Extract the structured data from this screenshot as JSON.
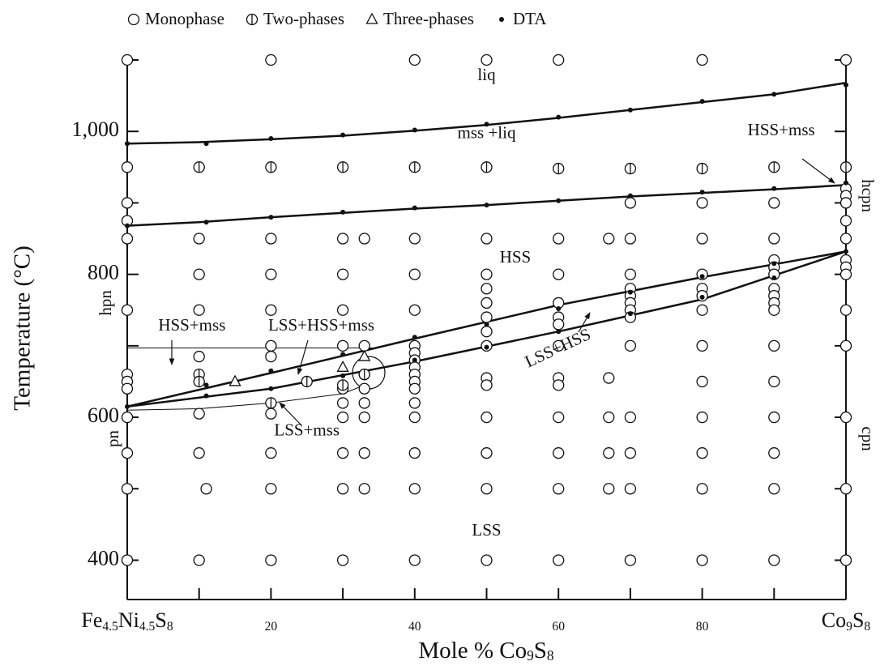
{
  "chart_data": {
    "type": "scatter",
    "x_label": "Mole % Co9S8",
    "y_label": "Temperature (°C)",
    "xlim": [
      0,
      100
    ],
    "ylim": [
      345,
      1100
    ],
    "xticks": [
      {
        "value": 0,
        "label": "Fe4.5Ni4.5S8"
      },
      20,
      40,
      60,
      80,
      {
        "value": 100,
        "label": "Co9S8"
      }
    ],
    "xminorticks": [
      10,
      30,
      50,
      70,
      90
    ],
    "yticks": [
      400,
      600,
      800,
      {
        "value": 1000,
        "label": "1,000"
      }
    ],
    "yminorticks": [
      500,
      700,
      900,
      1100
    ],
    "color": "#111111",
    "series": [
      {
        "name": "Monophase",
        "marker": "circle",
        "x": [
          0,
          0,
          0,
          0,
          0,
          0,
          0,
          0,
          0,
          0,
          0,
          0,
          0,
          10,
          10,
          10,
          10,
          10,
          10,
          11,
          10,
          20,
          20,
          20,
          20,
          20,
          20,
          20,
          20,
          20,
          20,
          30,
          30,
          30,
          30,
          30,
          30,
          30,
          30,
          30,
          30,
          33,
          33,
          33,
          33,
          33,
          33,
          33,
          33,
          40,
          40,
          40,
          40,
          40,
          40,
          40,
          40,
          40,
          40,
          40,
          40,
          40,
          40,
          40,
          40,
          50,
          50,
          50,
          50,
          50,
          50,
          50,
          50,
          50,
          50,
          50,
          50,
          50,
          50,
          60,
          60,
          60,
          60,
          60,
          60,
          60,
          60,
          60,
          60,
          60,
          60,
          60,
          67,
          67,
          67,
          67,
          67,
          70,
          70,
          70,
          70,
          70,
          70,
          70,
          70,
          70,
          70,
          70,
          70,
          70,
          80,
          80,
          80,
          80,
          80,
          80,
          80,
          80,
          80,
          80,
          80,
          80,
          80,
          90,
          90,
          90,
          90,
          90,
          90,
          90,
          90,
          90,
          90,
          90,
          90,
          90,
          90,
          90,
          100,
          100,
          100,
          100,
          100,
          100,
          100,
          100,
          100,
          100,
          100,
          100,
          100,
          100
        ],
        "values": [
          1100,
          950,
          900,
          875,
          850,
          750,
          660,
          650,
          640,
          600,
          550,
          500,
          400,
          850,
          800,
          750,
          685,
          605,
          550,
          500,
          400,
          1100,
          850,
          800,
          750,
          700,
          685,
          605,
          550,
          500,
          400,
          850,
          800,
          750,
          700,
          640,
          620,
          600,
          550,
          500,
          400,
          850,
          700,
          660,
          640,
          620,
          600,
          550,
          500,
          1100,
          850,
          800,
          750,
          700,
          690,
          680,
          670,
          660,
          650,
          640,
          620,
          600,
          550,
          500,
          400,
          1100,
          850,
          800,
          780,
          760,
          740,
          720,
          700,
          655,
          645,
          600,
          550,
          500,
          400,
          1100,
          850,
          800,
          760,
          740,
          730,
          700,
          655,
          645,
          600,
          550,
          500,
          400,
          850,
          655,
          600,
          550,
          500,
          900,
          850,
          800,
          780,
          770,
          760,
          750,
          740,
          700,
          600,
          550,
          500,
          400,
          1100,
          900,
          850,
          800,
          780,
          770,
          750,
          700,
          650,
          600,
          550,
          500,
          400,
          900,
          850,
          820,
          810,
          800,
          780,
          770,
          760,
          750,
          700,
          650,
          600,
          550,
          500,
          400,
          1100,
          920,
          910,
          900,
          875,
          850,
          820,
          810,
          800,
          750,
          700,
          600,
          500,
          400
        ]
      },
      {
        "name": "Two-phases",
        "marker": "split",
        "x": [
          10,
          10,
          10,
          20,
          20,
          25,
          30,
          30,
          33,
          40,
          50,
          60,
          70,
          80,
          90,
          100
        ],
        "values": [
          950,
          660,
          650,
          950,
          620,
          650,
          950,
          645,
          660,
          950,
          950,
          948,
          948,
          948,
          950,
          950
        ]
      },
      {
        "name": "Three-phases",
        "marker": "triangle",
        "x": [
          15,
          30,
          33
        ],
        "values": [
          650,
          670,
          685
        ]
      },
      {
        "name": "DTA",
        "marker": "dot",
        "x": [
          0,
          0,
          0,
          11,
          11,
          11,
          11,
          20,
          20,
          20,
          20,
          30,
          30,
          30,
          30,
          40,
          40,
          40,
          40,
          50,
          50,
          50,
          50,
          60,
          60,
          60,
          60,
          70,
          70,
          70,
          70,
          80,
          80,
          80,
          80,
          90,
          90,
          90,
          90,
          100,
          100,
          100
        ],
        "values": [
          983,
          868,
          615,
          983,
          873,
          645,
          630,
          990,
          880,
          665,
          640,
          995,
          887,
          688,
          658,
          1002,
          893,
          712,
          680,
          1010,
          897,
          730,
          698,
          1020,
          903,
          752,
          720,
          1030,
          910,
          775,
          745,
          1042,
          915,
          797,
          768,
          1052,
          920,
          815,
          795,
          1065,
          928,
          832
        ]
      }
    ],
    "boundaries": [
      {
        "x": [
          0,
          10,
          20,
          30,
          40,
          50,
          60,
          70,
          80,
          90,
          100
        ],
        "values": [
          983,
          985,
          989,
          994,
          1001,
          1009,
          1019,
          1030,
          1041,
          1052,
          1068
        ],
        "width": 2.5
      },
      {
        "x": [
          0,
          10,
          20,
          30,
          40,
          50,
          60,
          70,
          80,
          90,
          100
        ],
        "values": [
          868,
          873,
          880,
          886,
          892,
          897,
          903,
          909,
          914,
          919,
          925
        ],
        "width": 2.5
      },
      {
        "x": [
          0,
          20,
          40,
          60,
          80,
          100
        ],
        "values": [
          615,
          662,
          710,
          757,
          796,
          832
        ],
        "width": 2.5
      },
      {
        "x": [
          0,
          20,
          40,
          60,
          80,
          100
        ],
        "values": [
          615,
          640,
          678,
          720,
          765,
          832
        ],
        "width": 2.5
      },
      {
        "x": [
          0,
          35
        ],
        "values": [
          697,
          697
        ],
        "width": 1
      },
      {
        "x": [
          0,
          10,
          20,
          30,
          33
        ],
        "values": [
          610,
          612,
          620,
          633,
          645
        ],
        "width": 1
      }
    ],
    "annotations": [
      "liq",
      "mss +liq",
      "HSS+mss",
      "HSS",
      "hpn",
      "HSS+mss",
      "LSS+HSS+mss",
      "LSS+mss",
      "LSS+HSS",
      "LSS",
      "pn",
      "hcpn",
      "cpn"
    ]
  }
}
